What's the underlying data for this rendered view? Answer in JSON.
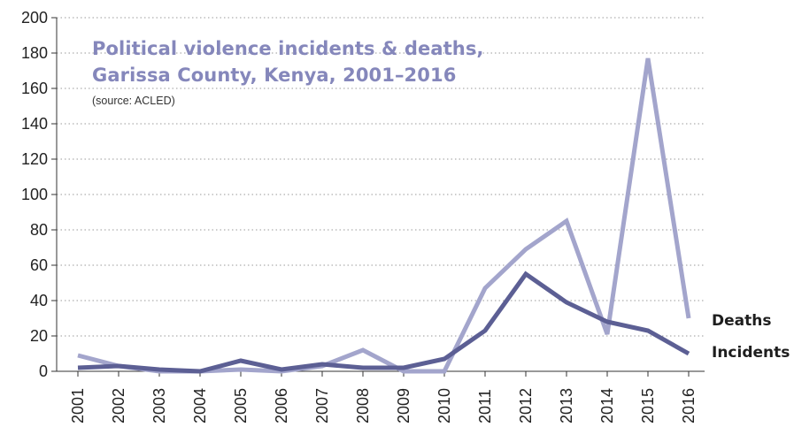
{
  "chart_data": {
    "type": "line",
    "title_lines": [
      "Political violence incidents & deaths,",
      "Garissa County, Kenya, 2001–2016"
    ],
    "subtitle": "(source: ACLED)",
    "xlabel": "",
    "ylabel": "",
    "x": [
      "2001",
      "2002",
      "2003",
      "2004",
      "2005",
      "2006",
      "2007",
      "2008",
      "2009",
      "2010",
      "2011",
      "2012",
      "2013",
      "2014",
      "2015",
      "2016"
    ],
    "ylim": [
      0,
      200
    ],
    "yticks": [
      0,
      20,
      40,
      60,
      80,
      100,
      120,
      140,
      160,
      180,
      200
    ],
    "grid": "horizontal dotted",
    "legend": "direct labels at line ends (right)",
    "series": [
      {
        "name": "Deaths",
        "color": "#a3a5cc",
        "values": [
          9,
          3,
          0,
          0,
          1,
          0,
          3,
          12,
          0,
          0,
          47,
          69,
          85,
          21,
          177,
          30
        ]
      },
      {
        "name": "Incidents",
        "color": "#5c5f94",
        "values": [
          2,
          3,
          1,
          0,
          6,
          1,
          4,
          2,
          2,
          7,
          23,
          55,
          39,
          28,
          23,
          10
        ]
      }
    ]
  }
}
